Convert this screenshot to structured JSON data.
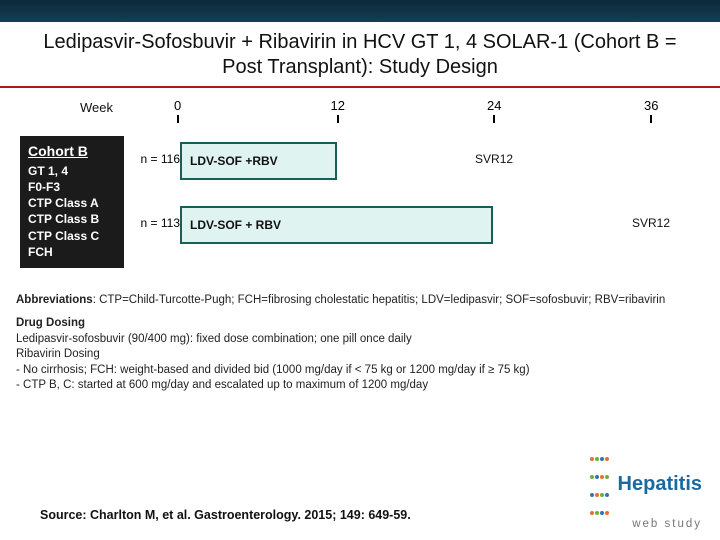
{
  "title": "Ledipasvir-Sofosbuvir + Ribavirin in HCV GT 1, 4 SOLAR-1 (Cohort B = Post Transplant): Study Design",
  "timeline": {
    "weekLabel": "Week",
    "ticks": [
      {
        "label": "0",
        "pct": 0
      },
      {
        "label": "12",
        "pct": 33.3
      },
      {
        "label": "24",
        "pct": 66.6
      },
      {
        "label": "36",
        "pct": 100
      }
    ],
    "colors": {
      "tick": "#000000"
    }
  },
  "cohort": {
    "title": "Cohort B",
    "lines": [
      "GT 1, 4",
      "F0-F3",
      "CTP Class A",
      "CTP Class B",
      "CTP Class C",
      "FCH"
    ],
    "bg": "#1b1b1b",
    "fg": "#ffffff"
  },
  "arms": [
    {
      "n": "n = 116",
      "label": "LDV-SOF +RBV",
      "startPct": 0,
      "endPct": 33.3,
      "svr": "SVR12",
      "svrPct": 66.6
    },
    {
      "n": "n = 113",
      "label": "LDV-SOF + RBV",
      "startPct": 0,
      "endPct": 66.6,
      "svr": "SVR12",
      "svrPct": 100
    }
  ],
  "barStyle": {
    "fill": "#dff3f0",
    "border": "#1a5f55"
  },
  "abbrev": {
    "lead": "Abbreviations",
    "text": ": CTP=Child-Turcotte-Pugh; FCH=fibrosing cholestatic hepatitis; LDV=ledipasvir; SOF=sofosbuvir; RBV=ribavirin"
  },
  "dosing": {
    "title": "Drug Dosing",
    "lines": [
      "Ledipasvir-sofosbuvir (90/400 mg): fixed dose combination; one pill once daily",
      "Ribavirin Dosing",
      "- No cirrhosis; FCH: weight-based and divided bid (1000 mg/day if < 75 kg or 1200 mg/day if ≥ 75 kg)",
      "- CTP B, C: started at 600 mg/day and escalated up to maximum of 1200 mg/day"
    ]
  },
  "source": "Source: Charlton M, et al. Gastroenterology. 2015; 149: 649-59.",
  "logo": {
    "title": "Hepatitis",
    "sub": "web study",
    "dotColors": [
      "#e96f2e",
      "#6fae3e",
      "#2f77b0",
      "#e96f2e",
      "#6fae3e",
      "#2f77b0",
      "#e96f2e",
      "#6fae3e",
      "#2f77b0",
      "#e96f2e",
      "#6fae3e",
      "#2f77b0",
      "#e96f2e",
      "#6fae3e",
      "#2f77b0",
      "#e96f2e"
    ]
  }
}
